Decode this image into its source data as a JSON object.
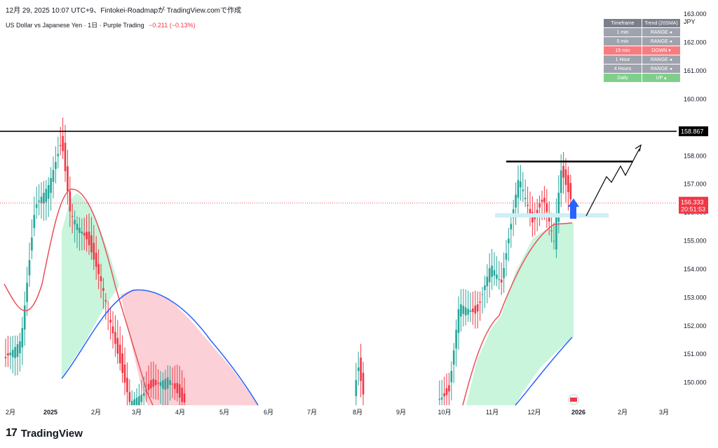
{
  "header": {
    "publish_line": "12月 29, 2025 10:07 UTC+9、Fintokei-Roadmapが TradingView.comで作成",
    "symbol": "US Dollar vs Japanese Yen · 1日 · Purple Trading",
    "change": "−0.211 (−0.13%)"
  },
  "logo": {
    "text": "TradingView"
  },
  "trend_table": {
    "columns": [
      "Timeframe",
      "Trend (20SMA)"
    ],
    "rows": [
      {
        "tf": "1 min",
        "trend": "RANGE ◂",
        "state": "range"
      },
      {
        "tf": "5 min",
        "trend": "RANGE ◂",
        "state": "range"
      },
      {
        "tf": "15 min",
        "trend": "DOWN ▾",
        "state": "down"
      },
      {
        "tf": "1 Hour",
        "trend": "RANGE ◂",
        "state": "range"
      },
      {
        "tf": "4 Hours",
        "trend": "RANGE ◂",
        "state": "range"
      },
      {
        "tf": "Daily",
        "trend": "UP ▴",
        "state": "up"
      }
    ]
  },
  "colors": {
    "up": "#26a69a",
    "down": "#f23645",
    "ma_fast": "#e8505b",
    "ma_slow": "#2962ff",
    "fill_up": "#c8f5dc",
    "fill_down": "#fbd0d6",
    "support_zone": "#cdeff5",
    "arrow": "#2962ff"
  },
  "chart_data": {
    "type": "candlestick",
    "currency": "JPY",
    "ylim": [
      149.2,
      163.5
    ],
    "y_ticks": [
      "163.000",
      "162.000",
      "161.000",
      "160.000",
      "158.000",
      "157.000",
      "156.000",
      "155.000",
      "154.000",
      "153.000",
      "152.000",
      "151.000",
      "150.000"
    ],
    "x_ticks": [
      "2月",
      "2025",
      "2月",
      "3月",
      "4月",
      "5月",
      "6月",
      "7月",
      "8月",
      "9月",
      "10月",
      "11月",
      "12月",
      "2026",
      "2月",
      "3月"
    ],
    "last_price": "156.333",
    "countdown": "20:51:53",
    "resistance_level": "158.867",
    "grid": false,
    "legend": "none"
  }
}
